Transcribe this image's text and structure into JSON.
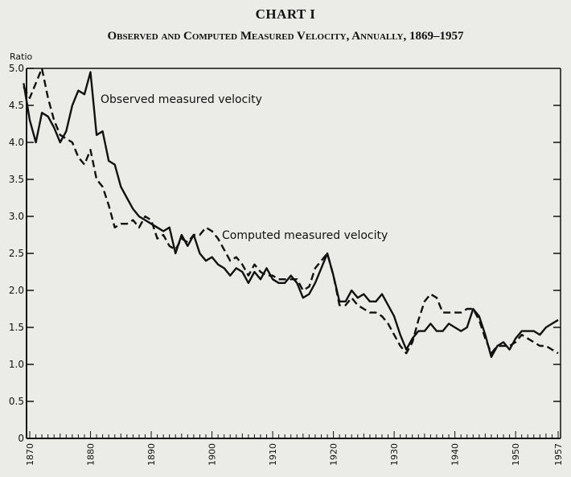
{
  "header": {
    "title": "CHART I",
    "subtitle": "Observed and Computed Measured Velocity, Annually, 1869–1957"
  },
  "chart_data": {
    "type": "line",
    "title": "Observed and Computed Measured Velocity, Annually, 1869–1957",
    "ylabel": "Ratio",
    "xlabel": "",
    "xlim": [
      1869,
      1957
    ],
    "ylim": [
      0,
      5.0
    ],
    "yticks": [
      "0",
      "0.5",
      "1.0",
      "1.5",
      "2.0",
      "2.5",
      "3.0",
      "3.5",
      "4.0",
      "4.5",
      "5.0"
    ],
    "ytick_values": [
      0,
      0.5,
      1.0,
      1.5,
      2.0,
      2.5,
      3.0,
      3.5,
      4.0,
      4.5,
      5.0
    ],
    "xticks": [
      "1870",
      "1880",
      "1890",
      "1900",
      "1910",
      "1920",
      "1930",
      "1940",
      "1950",
      "1957"
    ],
    "xtick_values": [
      1870,
      1880,
      1890,
      1900,
      1910,
      1920,
      1930,
      1940,
      1950,
      1957
    ],
    "grid": false,
    "x": [
      1869,
      1870,
      1871,
      1872,
      1873,
      1874,
      1875,
      1876,
      1877,
      1878,
      1879,
      1880,
      1881,
      1882,
      1883,
      1884,
      1885,
      1886,
      1887,
      1888,
      1889,
      1890,
      1891,
      1892,
      1893,
      1894,
      1895,
      1896,
      1897,
      1898,
      1899,
      1900,
      1901,
      1902,
      1903,
      1904,
      1905,
      1906,
      1907,
      1908,
      1909,
      1910,
      1911,
      1912,
      1913,
      1914,
      1915,
      1916,
      1917,
      1918,
      1919,
      1920,
      1921,
      1922,
      1923,
      1924,
      1925,
      1926,
      1927,
      1928,
      1929,
      1930,
      1931,
      1932,
      1933,
      1934,
      1935,
      1936,
      1937,
      1938,
      1939,
      1940,
      1941,
      1942,
      1943,
      1944,
      1945,
      1946,
      1947,
      1948,
      1949,
      1950,
      1951,
      1952,
      1953,
      1954,
      1955,
      1956,
      1957
    ],
    "series": [
      {
        "name": "Observed measured velocity",
        "style": "solid",
        "values": [
          4.8,
          4.3,
          4.0,
          4.4,
          4.35,
          4.2,
          4.0,
          4.15,
          4.5,
          4.7,
          4.65,
          4.95,
          4.1,
          4.15,
          3.75,
          3.7,
          3.4,
          3.25,
          3.1,
          3.0,
          2.95,
          2.9,
          2.85,
          2.8,
          2.85,
          2.5,
          2.75,
          2.6,
          2.75,
          2.5,
          2.4,
          2.45,
          2.35,
          2.3,
          2.2,
          2.3,
          2.25,
          2.1,
          2.25,
          2.15,
          2.3,
          2.15,
          2.1,
          2.1,
          2.2,
          2.1,
          1.9,
          1.95,
          2.1,
          2.3,
          2.5,
          2.2,
          1.85,
          1.85,
          2.0,
          1.9,
          1.95,
          1.85,
          1.85,
          1.95,
          1.8,
          1.65,
          1.4,
          1.2,
          1.35,
          1.45,
          1.45,
          1.55,
          1.45,
          1.45,
          1.55,
          1.5,
          1.45,
          1.5,
          1.75,
          1.65,
          1.4,
          1.1,
          1.25,
          1.3,
          1.2,
          1.35,
          1.45,
          1.45,
          1.45,
          1.4,
          1.5,
          1.55,
          1.6
        ]
      },
      {
        "name": "Computed measured velocity",
        "style": "dashed",
        "values": [
          4.75,
          4.6,
          4.8,
          5.0,
          4.6,
          4.3,
          4.1,
          4.05,
          4.0,
          3.8,
          3.7,
          3.9,
          3.5,
          3.4,
          3.15,
          2.85,
          2.9,
          2.9,
          2.95,
          2.85,
          3.0,
          2.95,
          2.7,
          2.75,
          2.6,
          2.55,
          2.7,
          2.65,
          2.75,
          2.75,
          2.85,
          2.8,
          2.7,
          2.55,
          2.4,
          2.45,
          2.35,
          2.2,
          2.35,
          2.25,
          2.2,
          2.2,
          2.15,
          2.15,
          2.15,
          2.15,
          2.0,
          2.05,
          2.3,
          2.4,
          2.5,
          2.2,
          1.8,
          1.8,
          1.9,
          1.8,
          1.75,
          1.7,
          1.7,
          1.65,
          1.55,
          1.4,
          1.25,
          1.15,
          1.3,
          1.6,
          1.85,
          1.95,
          1.9,
          1.7,
          1.7,
          1.7,
          1.7,
          1.75,
          1.75,
          1.6,
          1.35,
          1.15,
          1.25,
          1.25,
          1.25,
          1.3,
          1.4,
          1.35,
          1.3,
          1.25,
          1.25,
          1.2,
          1.15
        ]
      }
    ],
    "annotations": [
      "Observed measured velocity",
      "Computed measured velocity"
    ],
    "colors": {
      "line": "#111111",
      "background": "#ebebe8"
    }
  }
}
